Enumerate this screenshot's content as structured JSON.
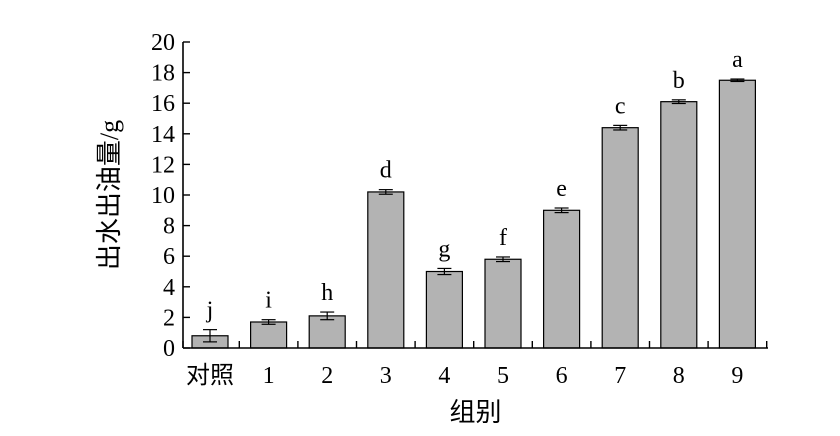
{
  "chart_data": {
    "type": "bar",
    "categories": [
      "对照",
      "1",
      "2",
      "3",
      "4",
      "5",
      "6",
      "7",
      "8",
      "9"
    ],
    "values": [
      0.8,
      1.7,
      2.1,
      10.2,
      5.0,
      5.8,
      9.0,
      14.4,
      16.1,
      17.5
    ],
    "errors": [
      0.4,
      0.15,
      0.25,
      0.15,
      0.2,
      0.15,
      0.15,
      0.15,
      0.12,
      0.08
    ],
    "significance_labels": [
      "j",
      "i",
      "h",
      "d",
      "g",
      "f",
      "e",
      "c",
      "b",
      "a"
    ],
    "xlabel": "组别",
    "ylabel": "出水出油量/g",
    "ylim": [
      0,
      20
    ],
    "yticks": [
      0,
      2,
      4,
      6,
      8,
      10,
      12,
      14,
      16,
      18,
      20
    ],
    "bar_color": "#b3b3b3",
    "grid": false
  }
}
